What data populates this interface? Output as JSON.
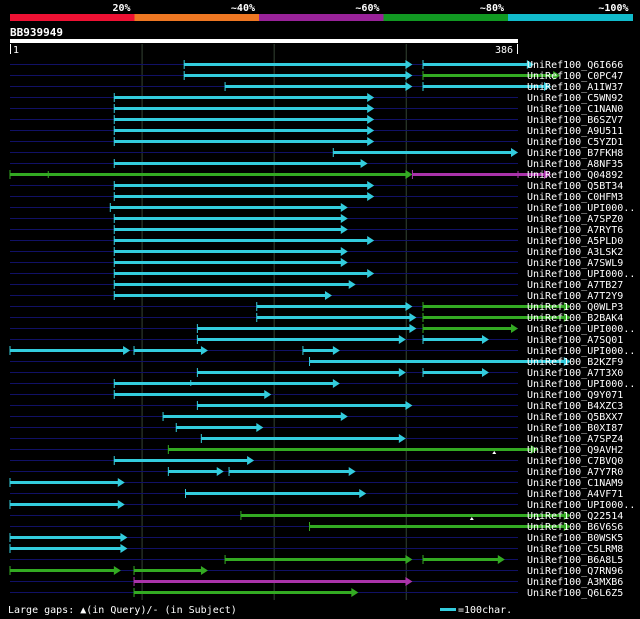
{
  "identity_scale": {
    "labels": [
      "20%",
      "~40%",
      "~60%",
      "~80%",
      "~100%"
    ],
    "colors": [
      "#ee1133",
      "#ee7722",
      "#992299",
      "#119922",
      "#11bbcc"
    ]
  },
  "query": {
    "id": "BB939949",
    "start": "1",
    "end": "386",
    "length": 386
  },
  "palette": {
    "cyan": "#33ccdd",
    "green": "#33aa22",
    "purple": "#aa33aa",
    "rail": "#111166",
    "grid": "#334433",
    "query_bar": "#ffffff",
    "text": "#ffffff"
  },
  "hits": [
    {
      "label": "UniRef100_Q6I666",
      "segments": [
        [
          133,
          306,
          "cyan"
        ],
        [
          314,
          398,
          "cyan"
        ]
      ]
    },
    {
      "label": "UniRef100_C0PC47",
      "segments": [
        [
          133,
          306,
          "cyan"
        ],
        [
          314,
          418,
          "green"
        ]
      ]
    },
    {
      "label": "UniRef100_A1IW37",
      "segments": [
        [
          164,
          306,
          "cyan"
        ],
        [
          314,
          411,
          "cyan"
        ]
      ]
    },
    {
      "label": "UniRef100_C5WN92",
      "segments": [
        [
          80,
          277,
          "cyan"
        ]
      ]
    },
    {
      "label": "UniRef100_C1NAN0",
      "segments": [
        [
          80,
          277,
          "cyan"
        ]
      ]
    },
    {
      "label": "UniRef100_B6SZV7",
      "segments": [
        [
          80,
          277,
          "cyan"
        ]
      ]
    },
    {
      "label": "UniRef100_A9U511",
      "segments": [
        [
          80,
          277,
          "cyan"
        ]
      ]
    },
    {
      "label": "UniRef100_C5YZD1",
      "segments": [
        [
          80,
          277,
          "cyan"
        ]
      ]
    },
    {
      "label": "UniRef100_B7FKH8",
      "segments": [
        [
          246,
          386,
          "cyan"
        ]
      ]
    },
    {
      "label": "UniRef100_A8NF35",
      "segments": [
        [
          80,
          272,
          "cyan"
        ]
      ]
    },
    {
      "label": "UniRef100_Q04892",
      "segments": [
        [
          1,
          306,
          "green"
        ],
        [
          306,
          411,
          "purple"
        ]
      ],
      "ticks": [
        [
          30,
          "green"
        ],
        [
          386,
          "purple"
        ]
      ]
    },
    {
      "label": "UniRef100_Q5BT34",
      "segments": [
        [
          80,
          277,
          "cyan"
        ]
      ]
    },
    {
      "label": "UniRef100_C0HFM3",
      "segments": [
        [
          80,
          277,
          "cyan"
        ]
      ]
    },
    {
      "label": "UniRef100_UPI000..",
      "segments": [
        [
          77,
          257,
          "cyan"
        ]
      ]
    },
    {
      "label": "UniRef100_A7SPZ0",
      "segments": [
        [
          80,
          257,
          "cyan"
        ]
      ]
    },
    {
      "label": "UniRef100_A7RYT6",
      "segments": [
        [
          80,
          257,
          "cyan"
        ]
      ]
    },
    {
      "label": "UniRef100_A5PLD0",
      "segments": [
        [
          80,
          277,
          "cyan"
        ]
      ]
    },
    {
      "label": "UniRef100_A3LSK2",
      "segments": [
        [
          80,
          257,
          "cyan"
        ]
      ]
    },
    {
      "label": "UniRef100_A7SWL9",
      "segments": [
        [
          80,
          257,
          "cyan"
        ]
      ]
    },
    {
      "label": "UniRef100_UPI000..",
      "segments": [
        [
          80,
          277,
          "cyan"
        ]
      ]
    },
    {
      "label": "UniRef100_A7TB27",
      "segments": [
        [
          80,
          263,
          "cyan"
        ]
      ]
    },
    {
      "label": "UniRef100_A7T2Y9",
      "segments": [
        [
          80,
          245,
          "cyan"
        ]
      ]
    },
    {
      "label": "UniRef100_Q0WLP3",
      "segments": [
        [
          188,
          306,
          "cyan"
        ],
        [
          314,
          426,
          "green"
        ]
      ]
    },
    {
      "label": "UniRef100_B2BAK4",
      "segments": [
        [
          188,
          309,
          "cyan"
        ],
        [
          314,
          426,
          "green"
        ]
      ]
    },
    {
      "label": "UniRef100_UPI000..",
      "segments": [
        [
          143,
          309,
          "cyan"
        ],
        [
          314,
          386,
          "green"
        ]
      ]
    },
    {
      "label": "UniRef100_A7SQ01",
      "segments": [
        [
          143,
          301,
          "cyan"
        ],
        [
          314,
          364,
          "cyan"
        ]
      ]
    },
    {
      "label": "UniRef100_UPI000..",
      "segments": [
        [
          1,
          92,
          "cyan"
        ],
        [
          95,
          151,
          "cyan"
        ],
        [
          223,
          251,
          "cyan"
        ]
      ]
    },
    {
      "label": "UniRef100_B2KZF9",
      "segments": [
        [
          228,
          426,
          "cyan"
        ]
      ]
    },
    {
      "label": "UniRef100_A7T3X0",
      "segments": [
        [
          143,
          301,
          "cyan"
        ],
        [
          314,
          364,
          "cyan"
        ]
      ]
    },
    {
      "label": "UniRef100_UPI000..",
      "segments": [
        [
          80,
          251,
          "cyan"
        ],
        [
          138,
          "tick",
          "cyan"
        ]
      ]
    },
    {
      "label": "UniRef100_Q9Y071",
      "segments": [
        [
          80,
          199,
          "cyan"
        ]
      ]
    },
    {
      "label": "UniRef100_B4XZC3",
      "segments": [
        [
          143,
          306,
          "cyan"
        ]
      ]
    },
    {
      "label": "UniRef100_Q5BXX7",
      "segments": [
        [
          117,
          257,
          "cyan"
        ]
      ]
    },
    {
      "label": "UniRef100_B0XI87",
      "segments": [
        [
          127,
          193,
          "cyan"
        ]
      ]
    },
    {
      "label": "UniRef100_A7SPZ4",
      "segments": [
        [
          146,
          301,
          "cyan"
        ]
      ]
    },
    {
      "label": "UniRef100_Q9AVH2",
      "segments": [
        [
          121,
          401,
          "green"
        ]
      ],
      "markers": [
        368
      ]
    },
    {
      "label": "UniRef100_C7BVQ0",
      "segments": [
        [
          80,
          186,
          "cyan"
        ]
      ]
    },
    {
      "label": "UniRef100_A7Y7R0",
      "segments": [
        [
          121,
          163,
          "cyan"
        ],
        [
          167,
          263,
          "cyan"
        ]
      ]
    },
    {
      "label": "UniRef100_C1NAM9",
      "segments": [
        [
          1,
          88,
          "cyan"
        ]
      ]
    },
    {
      "label": "UniRef100_A4VF71",
      "segments": [
        [
          134,
          271,
          "cyan"
        ]
      ]
    },
    {
      "label": "UniRef100_UPI000..",
      "segments": [
        [
          1,
          88,
          "cyan"
        ]
      ]
    },
    {
      "label": "UniRef100_Q22514",
      "segments": [
        [
          176,
          426,
          "green"
        ]
      ],
      "markers": [
        351,
        401
      ]
    },
    {
      "label": "UniRef100_B6V6S6",
      "segments": [
        [
          228,
          426,
          "green"
        ]
      ]
    },
    {
      "label": "UniRef100_B0WSK5",
      "segments": [
        [
          1,
          90,
          "cyan"
        ]
      ]
    },
    {
      "label": "UniRef100_C5LRM8",
      "segments": [
        [
          1,
          90,
          "cyan"
        ]
      ]
    },
    {
      "label": "UniRef100_B6A8L5",
      "segments": [
        [
          164,
          306,
          "green"
        ],
        [
          314,
          376,
          "green"
        ]
      ]
    },
    {
      "label": "UniRef100_Q7RN96",
      "segments": [
        [
          1,
          85,
          "green"
        ],
        [
          95,
          151,
          "green"
        ]
      ]
    },
    {
      "label": "UniRef100_A3MXB6",
      "segments": [
        [
          95,
          306,
          "purple"
        ]
      ]
    },
    {
      "label": "UniRef100_Q6L6Z5",
      "segments": [
        [
          95,
          265,
          "green"
        ]
      ]
    }
  ],
  "footer": {
    "large_gaps_text": "Large gaps: ▲(in Query)/- (in Subject)",
    "legend_text": "=100char."
  }
}
